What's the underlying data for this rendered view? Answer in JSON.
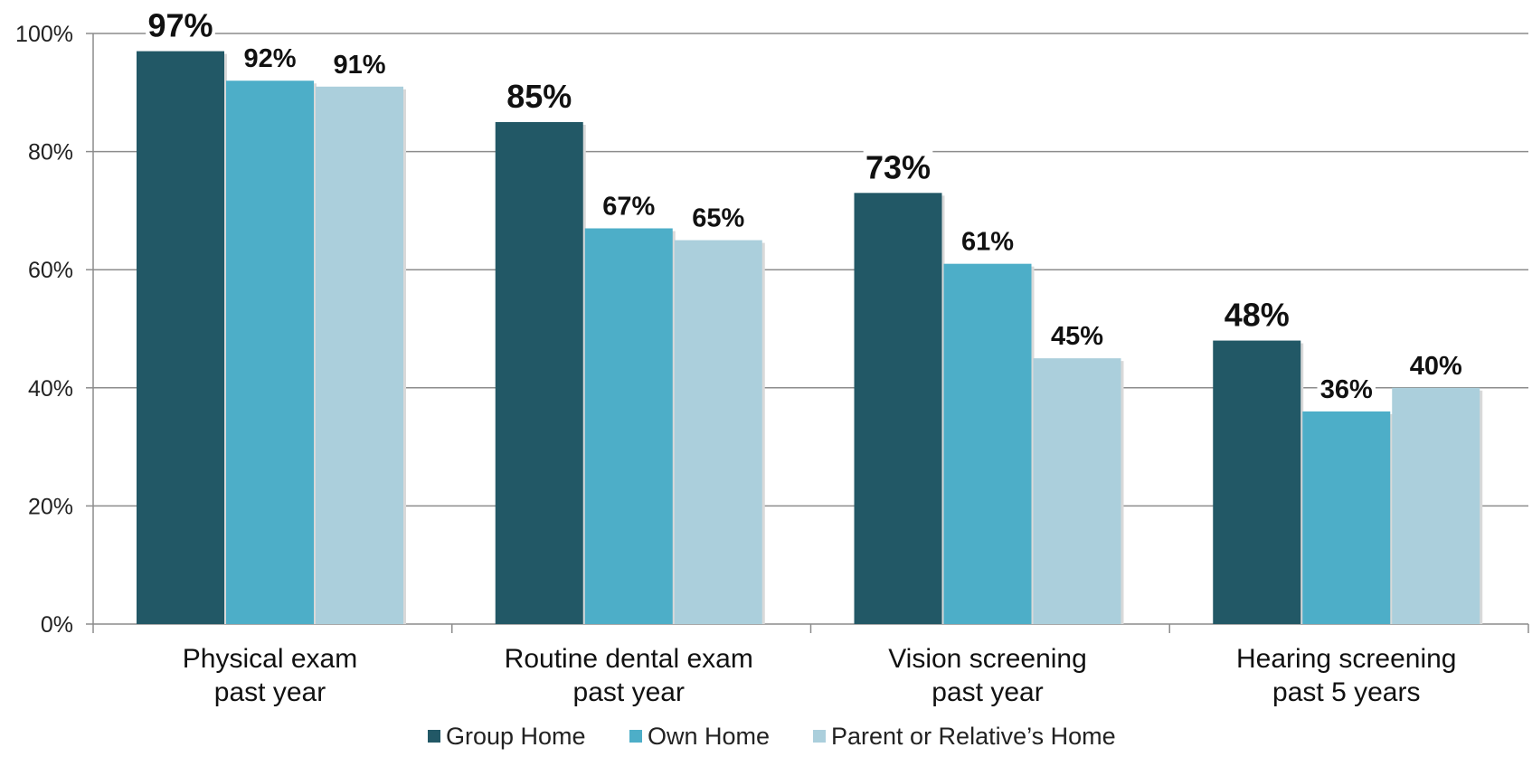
{
  "chart_data": {
    "type": "bar",
    "title": "",
    "xlabel": "",
    "ylabel": "",
    "ylim": [
      0,
      100
    ],
    "yticks": [
      "0%",
      "20%",
      "40%",
      "60%",
      "80%",
      "100%"
    ],
    "ytick_values": [
      0,
      20,
      40,
      60,
      80,
      100
    ],
    "grid": true,
    "legend_position": "bottom",
    "categories": [
      [
        "Physical exam",
        "past year"
      ],
      [
        "Routine dental exam",
        "past year"
      ],
      [
        "Vision screening",
        "past year"
      ],
      [
        "Hearing screening",
        "past 5 years"
      ]
    ],
    "series": [
      {
        "name": "Group Home",
        "color": "#225866",
        "values": [
          97,
          85,
          73,
          48
        ],
        "labels": [
          "97%",
          "85%",
          "73%",
          "48%"
        ]
      },
      {
        "name": "Own Home",
        "color": "#4DAEC8",
        "values": [
          92,
          67,
          61,
          36
        ],
        "labels": [
          "92%",
          "67%",
          "61%",
          "36%"
        ]
      },
      {
        "name": "Parent or Relative’s Home",
        "color": "#ABCFDC",
        "values": [
          91,
          65,
          45,
          40
        ],
        "labels": [
          "91%",
          "65%",
          "45%",
          "40%"
        ]
      }
    ]
  }
}
